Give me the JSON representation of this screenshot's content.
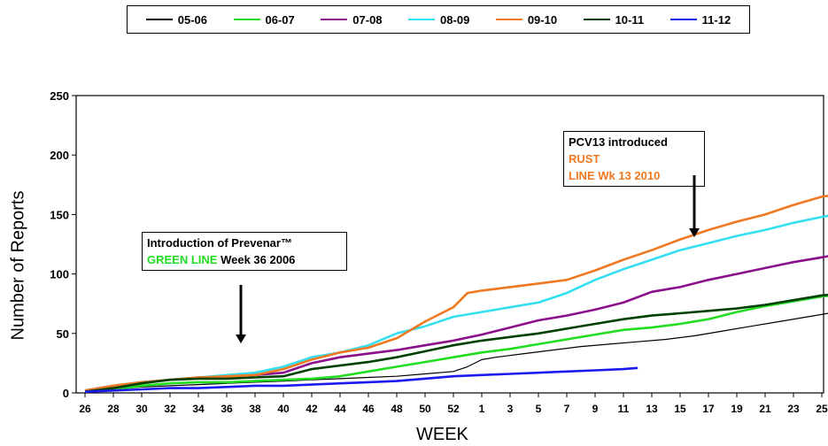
{
  "chart_data": {
    "type": "line",
    "title": "",
    "xlabel": "WEEK",
    "ylabel": "Number of Reports",
    "ylim": [
      0,
      250
    ],
    "yticks": [
      0,
      50,
      100,
      150,
      200,
      250
    ],
    "grid": false,
    "legend_position": "top",
    "x_tick_labels": [
      "26",
      "28",
      "30",
      "32",
      "34",
      "36",
      "38",
      "40",
      "42",
      "44",
      "46",
      "48",
      "50",
      "52",
      "1",
      "3",
      "5",
      "7",
      "9",
      "11",
      "13",
      "15",
      "17",
      "19",
      "21",
      "23",
      "25"
    ],
    "series": [
      {
        "name": "05-06",
        "color": "#000000",
        "points": [
          [
            0,
            1
          ],
          [
            2,
            3
          ],
          [
            4,
            5
          ],
          [
            6,
            6
          ],
          [
            8,
            7
          ],
          [
            10,
            8
          ],
          [
            12,
            9
          ],
          [
            14,
            10
          ],
          [
            16,
            11
          ],
          [
            18,
            12
          ],
          [
            20,
            13
          ],
          [
            22,
            14
          ],
          [
            24,
            16
          ],
          [
            26,
            18
          ],
          [
            27,
            22
          ],
          [
            28,
            28
          ],
          [
            29,
            30
          ],
          [
            31,
            33
          ],
          [
            33,
            36
          ],
          [
            35,
            39
          ],
          [
            37,
            41
          ],
          [
            39,
            43
          ],
          [
            41,
            45
          ],
          [
            43,
            48
          ],
          [
            45,
            52
          ],
          [
            47,
            56
          ],
          [
            49,
            60
          ],
          [
            51,
            64
          ],
          [
            53,
            68
          ],
          [
            55,
            76
          ],
          [
            56,
            76
          ]
        ]
      },
      {
        "name": "06-07",
        "color": "#22dd22",
        "points": [
          [
            0,
            1
          ],
          [
            2,
            3
          ],
          [
            4,
            6
          ],
          [
            6,
            8
          ],
          [
            8,
            9
          ],
          [
            10,
            9
          ],
          [
            12,
            10
          ],
          [
            14,
            11
          ],
          [
            16,
            12
          ],
          [
            18,
            14
          ],
          [
            20,
            18
          ],
          [
            22,
            22
          ],
          [
            24,
            26
          ],
          [
            26,
            30
          ],
          [
            28,
            34
          ],
          [
            30,
            37
          ],
          [
            32,
            41
          ],
          [
            34,
            45
          ],
          [
            36,
            49
          ],
          [
            38,
            53
          ],
          [
            40,
            55
          ],
          [
            42,
            58
          ],
          [
            44,
            62
          ],
          [
            46,
            68
          ],
          [
            48,
            73
          ],
          [
            50,
            77
          ],
          [
            52,
            81
          ],
          [
            54,
            84
          ],
          [
            56,
            86
          ]
        ]
      },
      {
        "name": "07-08",
        "color": "#8b0f8b",
        "points": [
          [
            0,
            2
          ],
          [
            2,
            6
          ],
          [
            4,
            9
          ],
          [
            6,
            11
          ],
          [
            8,
            13
          ],
          [
            10,
            14
          ],
          [
            12,
            15
          ],
          [
            14,
            17
          ],
          [
            16,
            25
          ],
          [
            18,
            30
          ],
          [
            20,
            33
          ],
          [
            22,
            36
          ],
          [
            24,
            40
          ],
          [
            26,
            44
          ],
          [
            28,
            49
          ],
          [
            30,
            55
          ],
          [
            32,
            61
          ],
          [
            34,
            65
          ],
          [
            36,
            70
          ],
          [
            38,
            76
          ],
          [
            40,
            85
          ],
          [
            42,
            89
          ],
          [
            44,
            95
          ],
          [
            46,
            100
          ],
          [
            48,
            105
          ],
          [
            50,
            110
          ],
          [
            52,
            114
          ],
          [
            54,
            118
          ],
          [
            56,
            122
          ]
        ]
      },
      {
        "name": "08-09",
        "color": "#33dff0",
        "points": [
          [
            0,
            2
          ],
          [
            2,
            6
          ],
          [
            4,
            9
          ],
          [
            6,
            11
          ],
          [
            8,
            13
          ],
          [
            10,
            15
          ],
          [
            12,
            17
          ],
          [
            14,
            22
          ],
          [
            16,
            30
          ],
          [
            18,
            34
          ],
          [
            20,
            40
          ],
          [
            22,
            50
          ],
          [
            24,
            56
          ],
          [
            26,
            64
          ],
          [
            28,
            68
          ],
          [
            30,
            72
          ],
          [
            32,
            76
          ],
          [
            34,
            84
          ],
          [
            36,
            95
          ],
          [
            38,
            104
          ],
          [
            40,
            112
          ],
          [
            42,
            120
          ],
          [
            44,
            126
          ],
          [
            46,
            132
          ],
          [
            48,
            137
          ],
          [
            50,
            143
          ],
          [
            52,
            148
          ],
          [
            54,
            152
          ],
          [
            56,
            153
          ]
        ]
      },
      {
        "name": "09-10",
        "color": "#f07820",
        "points": [
          [
            0,
            2
          ],
          [
            2,
            6
          ],
          [
            4,
            9
          ],
          [
            6,
            11
          ],
          [
            8,
            13
          ],
          [
            10,
            14
          ],
          [
            12,
            15
          ],
          [
            14,
            20
          ],
          [
            16,
            28
          ],
          [
            18,
            34
          ],
          [
            20,
            38
          ],
          [
            22,
            46
          ],
          [
            24,
            60
          ],
          [
            26,
            72
          ],
          [
            27,
            84
          ],
          [
            28,
            86
          ],
          [
            30,
            89
          ],
          [
            32,
            92
          ],
          [
            34,
            95
          ],
          [
            36,
            103
          ],
          [
            38,
            112
          ],
          [
            40,
            120
          ],
          [
            42,
            129
          ],
          [
            44,
            137
          ],
          [
            46,
            144
          ],
          [
            48,
            150
          ],
          [
            50,
            158
          ],
          [
            52,
            165
          ],
          [
            54,
            168
          ],
          [
            56,
            169
          ]
        ]
      },
      {
        "name": "10-11",
        "color": "#004000",
        "points": [
          [
            0,
            1
          ],
          [
            2,
            4
          ],
          [
            4,
            8
          ],
          [
            6,
            11
          ],
          [
            8,
            12
          ],
          [
            10,
            12
          ],
          [
            12,
            13
          ],
          [
            14,
            14
          ],
          [
            16,
            20
          ],
          [
            18,
            23
          ],
          [
            20,
            26
          ],
          [
            22,
            30
          ],
          [
            24,
            35
          ],
          [
            26,
            40
          ],
          [
            28,
            44
          ],
          [
            30,
            47
          ],
          [
            32,
            50
          ],
          [
            34,
            54
          ],
          [
            36,
            58
          ],
          [
            38,
            62
          ],
          [
            40,
            65
          ],
          [
            42,
            67
          ],
          [
            44,
            69
          ],
          [
            46,
            71
          ],
          [
            48,
            74
          ],
          [
            50,
            78
          ],
          [
            52,
            82
          ],
          [
            54,
            84
          ],
          [
            56,
            85
          ]
        ]
      },
      {
        "name": "11-12",
        "color": "#1a1aee",
        "points": [
          [
            0,
            1
          ],
          [
            2,
            2
          ],
          [
            4,
            3
          ],
          [
            6,
            4
          ],
          [
            8,
            4
          ],
          [
            10,
            5
          ],
          [
            12,
            6
          ],
          [
            14,
            6
          ],
          [
            16,
            7
          ],
          [
            18,
            8
          ],
          [
            20,
            9
          ],
          [
            22,
            10
          ],
          [
            24,
            12
          ],
          [
            26,
            14
          ],
          [
            28,
            15
          ],
          [
            30,
            16
          ],
          [
            32,
            17
          ],
          [
            34,
            18
          ],
          [
            36,
            19
          ],
          [
            38,
            20
          ],
          [
            39,
            21
          ]
        ]
      }
    ],
    "annotations": [
      {
        "parts": [
          {
            "text": "Introduction of Prevenar™",
            "color": "#000000"
          },
          {
            "text": "GREEN LINE",
            "color": "#22dd22"
          },
          {
            "text": " Week 36 2006",
            "color": "#000000"
          }
        ],
        "arrow_x": 11
      },
      {
        "parts": [
          {
            "text": "PCV13 introduced ",
            "color": "#000000"
          },
          {
            "text": "RUST",
            "color": "#f07820"
          },
          {
            "text": "LINE Wk 13 2010",
            "color": "#f07820"
          }
        ],
        "arrow_x": 43
      }
    ]
  }
}
